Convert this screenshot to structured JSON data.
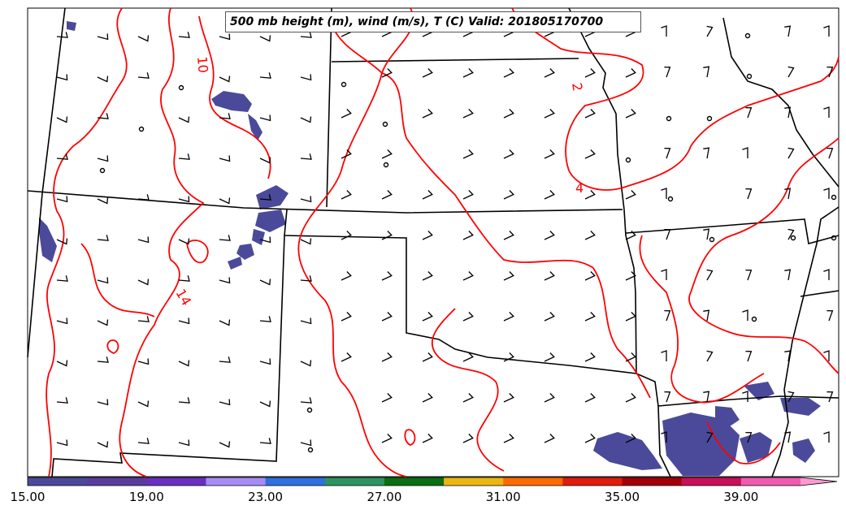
{
  "title": "500 mb height (m), wind (m/s), T (C) Valid: 201805170700",
  "colorbar": {
    "tick_labels": [
      "15.00",
      "19.00",
      "23.00",
      "27.00",
      "31.00",
      "35.00",
      "39.00"
    ],
    "colors": [
      "#4b4a9a",
      "#5a3c9e",
      "#6a2fc0",
      "#a58cf5",
      "#2f6fe0",
      "#2e9360",
      "#0a6e12",
      "#eab610",
      "#ff6a00",
      "#e01c0c",
      "#a3000a",
      "#c8105a",
      "#f05ab0",
      "#ff9ad0"
    ]
  },
  "contour_labels": [
    "10",
    "2",
    "4",
    "14"
  ],
  "colors": {
    "temperature_contour": "#ff0000",
    "borders": "#000000",
    "shading": "#4b4a9a"
  }
}
